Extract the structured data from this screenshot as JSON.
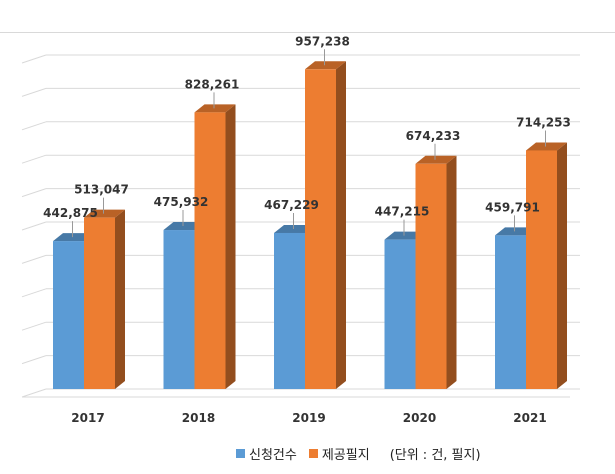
{
  "chart_data": {
    "type": "bar",
    "categories": [
      "2017",
      "2018",
      "2019",
      "2020",
      "2021"
    ],
    "series": [
      {
        "name": "신청건수",
        "values": [
          442875,
          475932,
          467229,
          447215,
          459791
        ],
        "labels": [
          "442,875",
          "475,932",
          "467,229",
          "447,215",
          "459,791"
        ],
        "color": "#5b9bd5"
      },
      {
        "name": "제공필지",
        "values": [
          513047,
          828261,
          957238,
          674233,
          714253
        ],
        "labels": [
          "513,047",
          "828,261",
          "957,238",
          "674,233",
          "714,253"
        ],
        "color": "#ed7d31"
      }
    ],
    "unit_note": "(단위 : 건, 필지)",
    "ylim": [
      0,
      1000000
    ],
    "grid": true,
    "legend": "bottom"
  }
}
